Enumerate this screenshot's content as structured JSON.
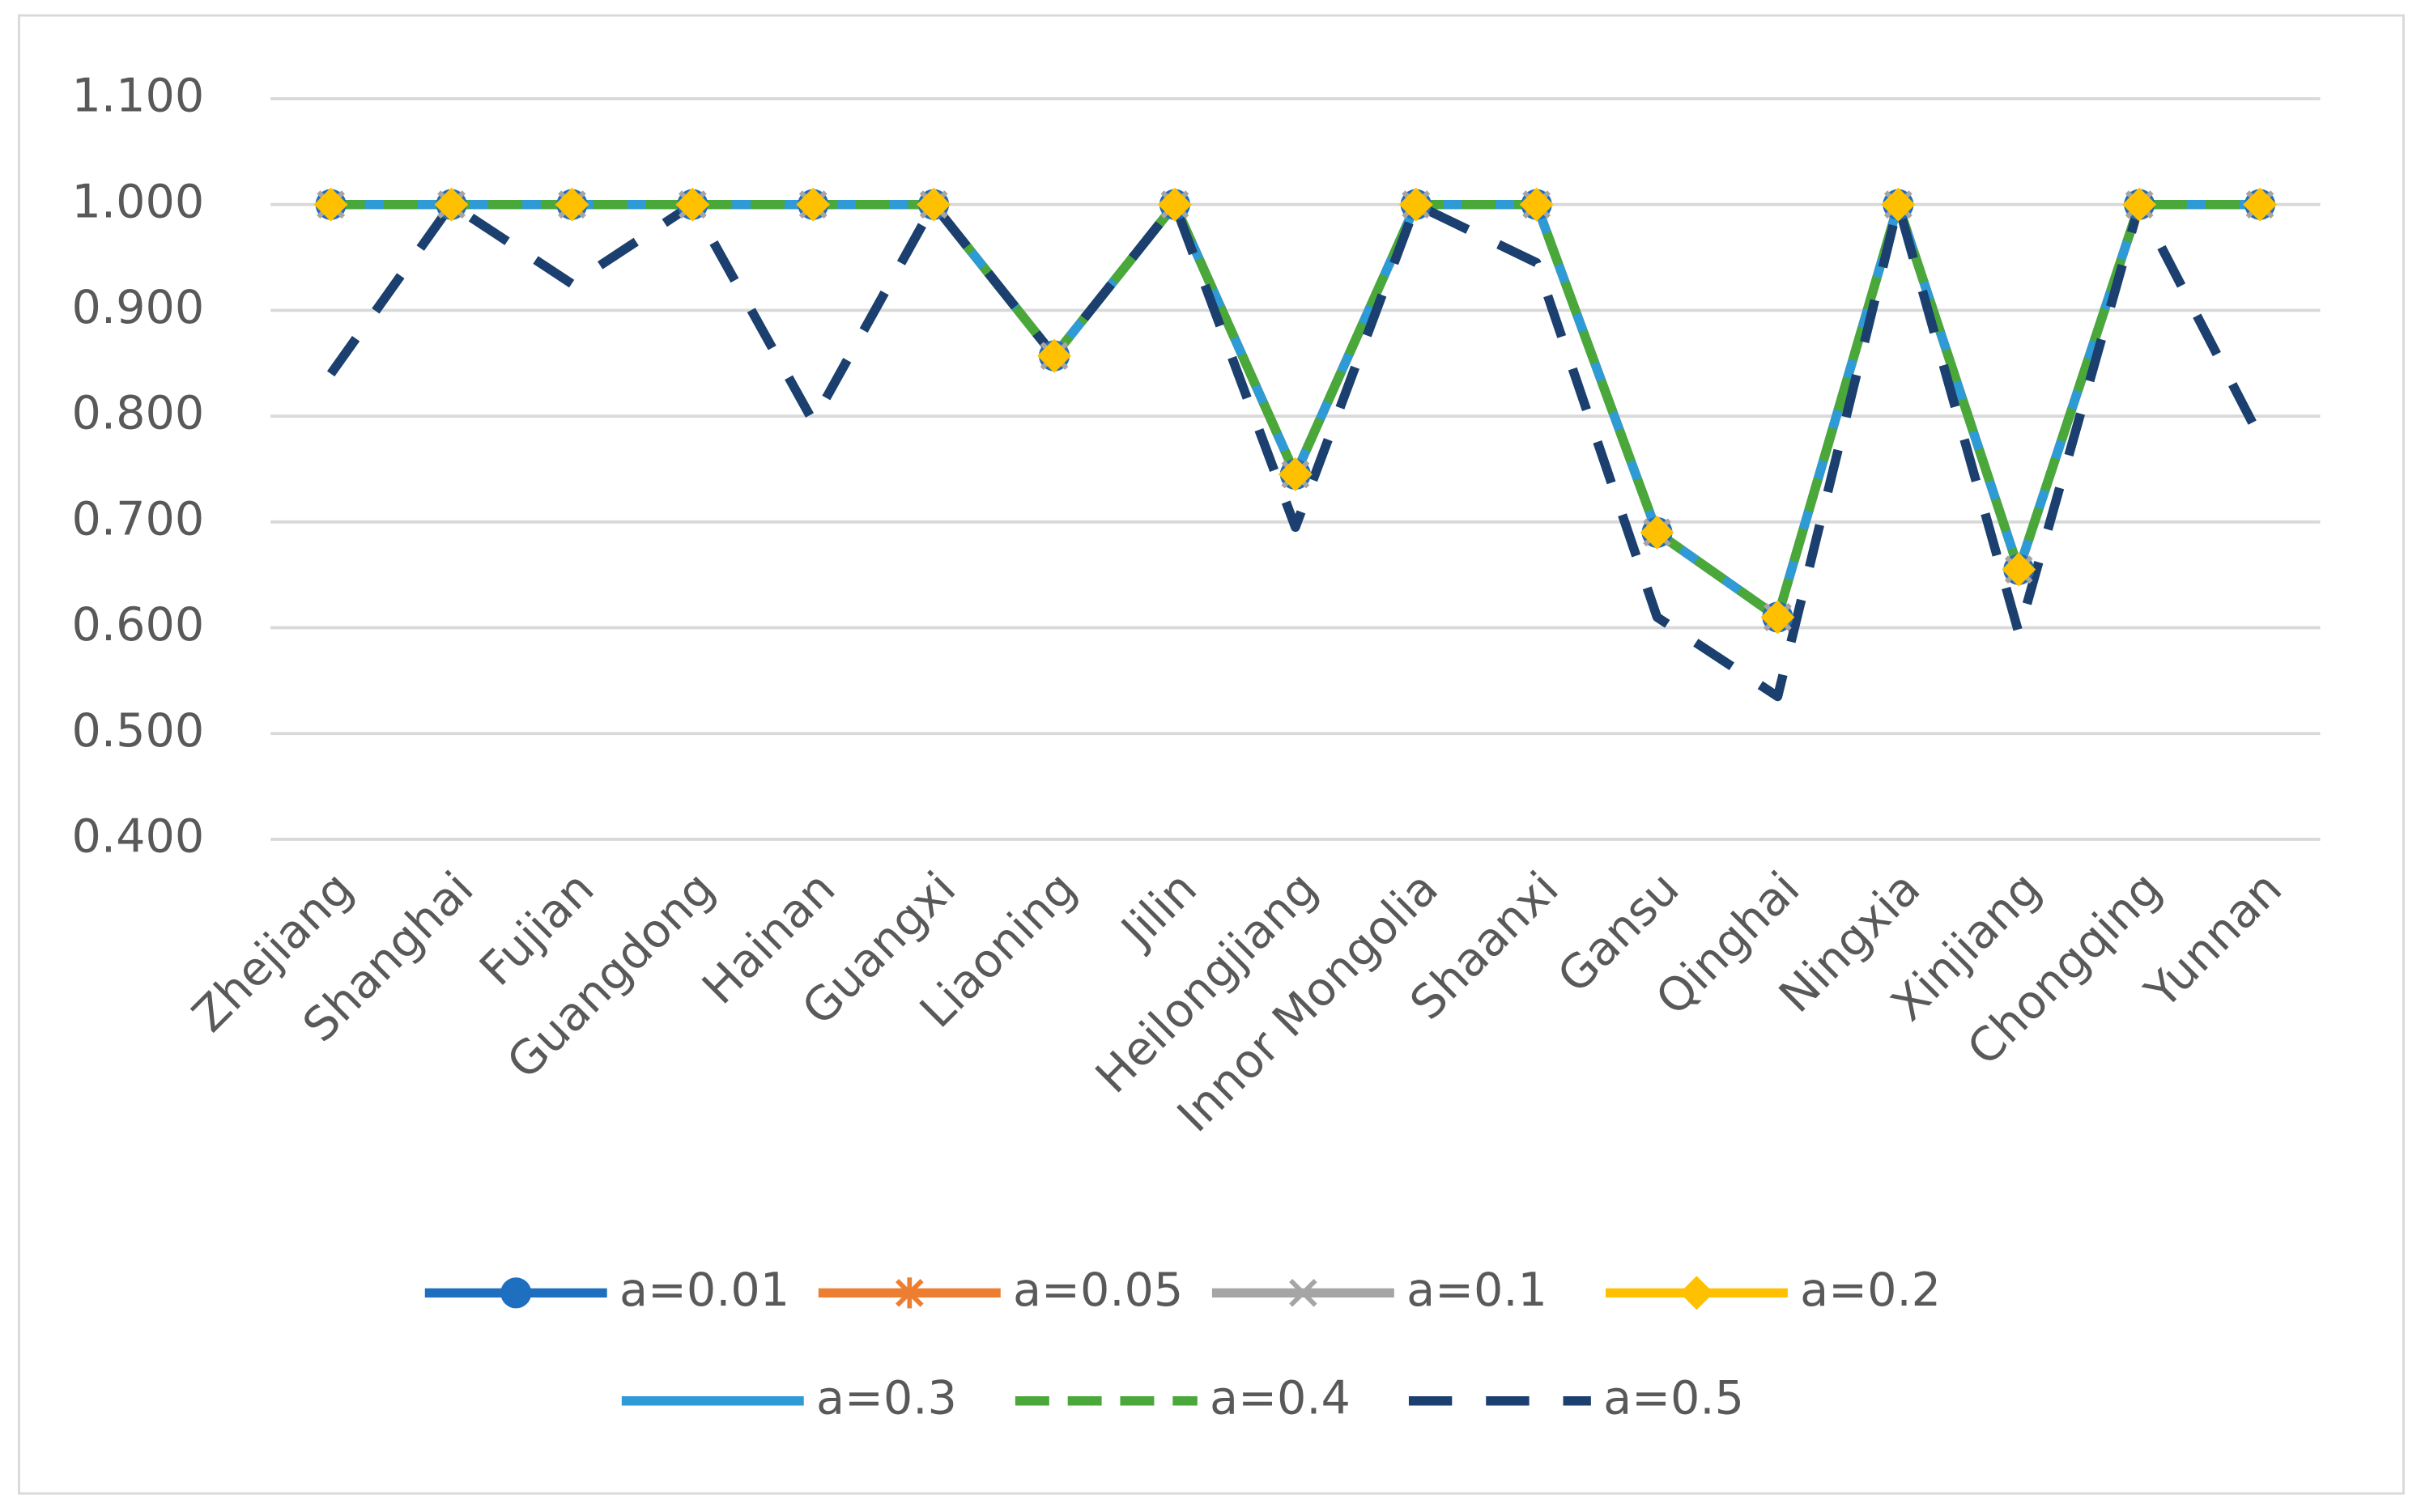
{
  "chart_data": {
    "type": "line",
    "categories": [
      "Zhejiang",
      "Shanghai",
      "Fujian",
      "Guangdong",
      "Hainan",
      "Guangxi",
      "Liaoning",
      "Jilin",
      "Heilongjiang",
      "Innor Mongolia",
      "Shaanxi",
      "Gansu",
      "Qinghai",
      "Ningxia",
      "Xinjiang",
      "Chongqing",
      "Yunnan"
    ],
    "ylim": [
      0.4,
      1.1
    ],
    "yticks": [
      {
        "value": 0.4,
        "label": "0.400"
      },
      {
        "value": 0.5,
        "label": "0.500"
      },
      {
        "value": 0.6,
        "label": "0.600"
      },
      {
        "value": 0.7,
        "label": "0.700"
      },
      {
        "value": 0.8,
        "label": "0.800"
      },
      {
        "value": 0.9,
        "label": "0.900"
      },
      {
        "value": 1.0,
        "label": "1.000"
      },
      {
        "value": 1.1,
        "label": "1.100"
      }
    ],
    "grid": true,
    "legend": "bottom",
    "series": [
      {
        "name": "a=0.01",
        "color": "#1f6fc0",
        "marker": "circle",
        "dash": "solid",
        "values": [
          1,
          1,
          1,
          1,
          1,
          1,
          0.857,
          1,
          0.745,
          1,
          1,
          0.69,
          0.61,
          1,
          0.655,
          1,
          1
        ]
      },
      {
        "name": "a=0.05",
        "color": "#ed7d31",
        "marker": "asterisk",
        "dash": "solid",
        "values": [
          1,
          1,
          1,
          1,
          1,
          1,
          0.857,
          1,
          0.745,
          1,
          1,
          0.69,
          0.61,
          1,
          0.655,
          1,
          1
        ]
      },
      {
        "name": "a=0.1",
        "color": "#a5a5a5",
        "marker": "cross",
        "dash": "solid",
        "values": [
          1,
          1,
          1,
          1,
          1,
          1,
          0.857,
          1,
          0.745,
          1,
          1,
          0.69,
          0.61,
          1,
          0.655,
          1,
          1
        ]
      },
      {
        "name": "a=0.2",
        "color": "#ffc000",
        "marker": "diamond",
        "dash": "solid",
        "values": [
          1,
          1,
          1,
          1,
          1,
          1,
          0.857,
          1,
          0.745,
          1,
          1,
          0.69,
          0.61,
          1,
          0.655,
          1,
          1
        ]
      },
      {
        "name": "a=0.3",
        "color": "#2e9ad6",
        "marker": "none",
        "dash": "solid",
        "values": [
          1,
          1,
          1,
          1,
          1,
          1,
          0.857,
          1,
          0.745,
          1,
          1,
          0.69,
          0.61,
          1,
          0.655,
          1,
          1
        ]
      },
      {
        "name": "a=0.4",
        "color": "#4aa83a",
        "marker": "none",
        "dash": "dash",
        "values": [
          1,
          1,
          1,
          1,
          1,
          1,
          0.857,
          1,
          0.745,
          1,
          1,
          0.69,
          0.61,
          1,
          0.655,
          1,
          1
        ]
      },
      {
        "name": "a=0.5",
        "color": "#1b3f6e",
        "marker": "none",
        "dash": "longdash",
        "values": [
          0.84,
          1,
          0.925,
          1,
          0.795,
          1,
          0.857,
          1,
          0.695,
          1,
          0.945,
          0.61,
          0.535,
          1,
          0.595,
          1,
          0.78
        ]
      }
    ]
  }
}
